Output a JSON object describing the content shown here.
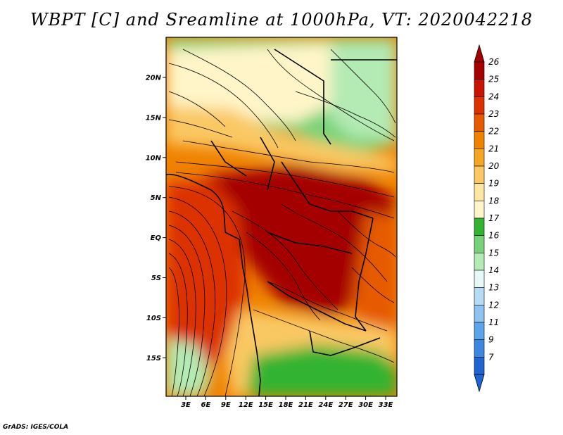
{
  "title": "WBPT [C] and Sreamline at 1000hPa, VT: 2020042218",
  "credit": "GrADS: IGES/COLA",
  "lat_labels": [
    "20N",
    "15N",
    "10N",
    "5N",
    "EQ",
    "5S",
    "10S",
    "15S"
  ],
  "lon_labels": [
    "3E",
    "6E",
    "9E",
    "12E",
    "15E",
    "18E",
    "21E",
    "24E",
    "27E",
    "30E",
    "33E"
  ],
  "colorbar": {
    "labels": [
      "26",
      "25",
      "24",
      "23",
      "22",
      "21",
      "20",
      "19",
      "18",
      "17",
      "16",
      "15",
      "14",
      "13",
      "12",
      "11",
      "9",
      "7"
    ],
    "colors": [
      "#a50000",
      "#c81400",
      "#dc3200",
      "#e65a00",
      "#f08200",
      "#f5a623",
      "#fac864",
      "#fde6a0",
      "#fff5c8",
      "#32b432",
      "#78d278",
      "#b4eab4",
      "#e6f8f8",
      "#b4dcf5",
      "#8cc3f0",
      "#5aa5eb",
      "#3c87e1",
      "#1e64d2"
    ]
  }
}
